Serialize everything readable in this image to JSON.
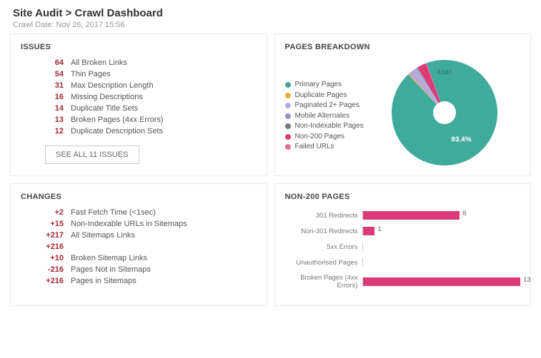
{
  "header": {
    "breadcrumb": "Site Audit > Crawl Dashboard",
    "crawl_date": "Crawl Date: Nov 26, 2017 15:56"
  },
  "issues_panel": {
    "title": "ISSUES",
    "items": [
      {
        "count": "64",
        "label": "All Broken Links"
      },
      {
        "count": "54",
        "label": "Thin Pages"
      },
      {
        "count": "31",
        "label": "Max Description Length"
      },
      {
        "count": "16",
        "label": "Missing Descriptions"
      },
      {
        "count": "14",
        "label": "Duplicate Title Sets"
      },
      {
        "count": "13",
        "label": "Broken Pages (4xx Errors)"
      },
      {
        "count": "12",
        "label": "Duplicate Description Sets"
      }
    ],
    "see_all_label": "SEE ALL 11 ISSUES"
  },
  "breakdown_panel": {
    "title": "PAGES BREAKDOWN",
    "donut": {
      "radius": 74,
      "inner_radius": 16,
      "center_label_top": "4,632",
      "slices": [
        {
          "label": "Primary Pages",
          "color": "#3fab9b",
          "pct": 93.4,
          "show_pct": "93.4%"
        },
        {
          "label": "Duplicate Pages",
          "color": "#e0b031",
          "pct": 0.3
        },
        {
          "label": "Paginated 2+ Pages",
          "color": "#b6abd8",
          "pct": 3.0
        },
        {
          "label": "Mobile Alternates",
          "color": "#9a8fc7",
          "pct": 0.2
        },
        {
          "label": "Non-Indexable Pages",
          "color": "#777777",
          "pct": 0.2
        },
        {
          "label": "Non-200 Pages",
          "color": "#dc3b77",
          "pct": 2.7
        },
        {
          "label": "Failed URLs",
          "color": "#e96b99",
          "pct": 0.2
        }
      ]
    }
  },
  "changes_panel": {
    "title": "CHANGES",
    "items": [
      {
        "delta": "+2",
        "label": "Fast Fetch Time (<1sec)"
      },
      {
        "delta": "+15",
        "label": "Non-Indexable URLs in Sitemaps"
      },
      {
        "delta": "+217",
        "label": "All Sitemaps Links"
      },
      {
        "delta": "+216",
        "label": ""
      },
      {
        "delta": "+10",
        "label": "Broken Sitemap Links"
      },
      {
        "delta": "-216",
        "label": "Pages Not in Sitemaps"
      },
      {
        "delta": "+216",
        "label": "Pages in Sitemaps"
      }
    ]
  },
  "non200_panel": {
    "title": "NON-200 PAGES",
    "chart": {
      "type": "bar",
      "bar_color": "#dc3b77",
      "max": 13,
      "rows": [
        {
          "label": "301 Redirects",
          "value": 8
        },
        {
          "label": "Non-301 Redirects",
          "value": 1
        },
        {
          "label": "5xx Errors",
          "value": 0
        },
        {
          "label": "Unauthorised Pages",
          "value": 0
        },
        {
          "label": "Broken Pages (4xx Errors)",
          "value": 13
        }
      ]
    }
  }
}
